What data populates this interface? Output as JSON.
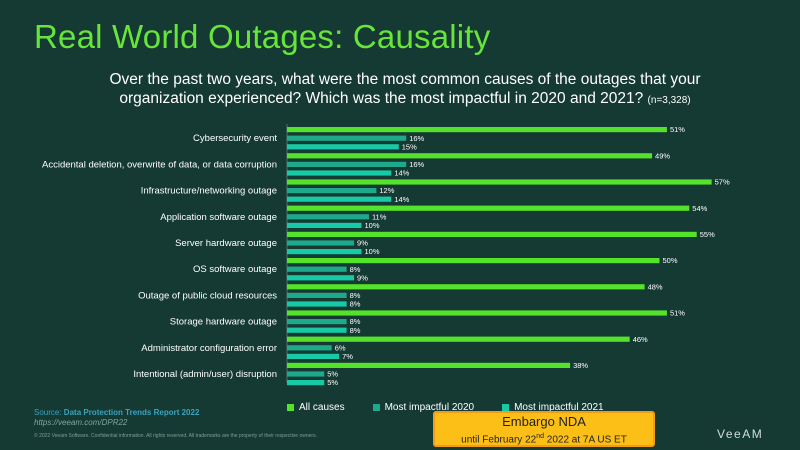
{
  "slide": {
    "title": "Real World Outages: Causality",
    "subtitle_line1": "Over the past two years, what were the most common causes of the outages that your",
    "subtitle_line2": "organization experienced?  Which was the most impactful in 2020 and 2021?",
    "sample_size": "(n=3,328)",
    "source_label": "Source: ",
    "source_report": "Data Protection Trends Report 2022",
    "source_link": "https://veeam.com/DPR22",
    "copyright": "© 2022 Veeam Software. Confidential information. All rights reserved. All trademarks are the property of their respective owners.",
    "embargo_line1": "Embargo NDA",
    "embargo_line2_pre": "until February 22",
    "embargo_line2_sup": "nd",
    "embargo_line2_post": " 2022 at 7A US ET",
    "logo_text": "VeeAM"
  },
  "colors": {
    "background": "#153a33",
    "title": "#68e53a",
    "all_causes": "#54e22b",
    "impactful_2020": "#1ea98a",
    "impactful_2021": "#18c9a6"
  },
  "chart_data": {
    "type": "bar",
    "orientation": "horizontal",
    "categories": [
      "Cybersecurity event",
      "Accidental deletion, overwrite of data, or data corruption",
      "Infrastructure/networking outage",
      "Application software outage",
      "Server hardware outage",
      "OS software outage",
      "Outage of public cloud resources",
      "Storage hardware outage",
      "Administrator configuration error",
      "Intentional (admin/user) disruption"
    ],
    "series": [
      {
        "name": "All causes",
        "values": [
          51,
          49,
          57,
          54,
          55,
          50,
          48,
          51,
          46,
          38
        ]
      },
      {
        "name": "Most impactful 2020",
        "values": [
          16,
          16,
          12,
          11,
          9,
          8,
          8,
          8,
          6,
          5
        ]
      },
      {
        "name": "Most impactful 2021",
        "values": [
          15,
          14,
          14,
          10,
          10,
          9,
          8,
          8,
          7,
          5
        ]
      }
    ],
    "value_suffix": "%",
    "xlim": [
      0,
      57
    ]
  }
}
